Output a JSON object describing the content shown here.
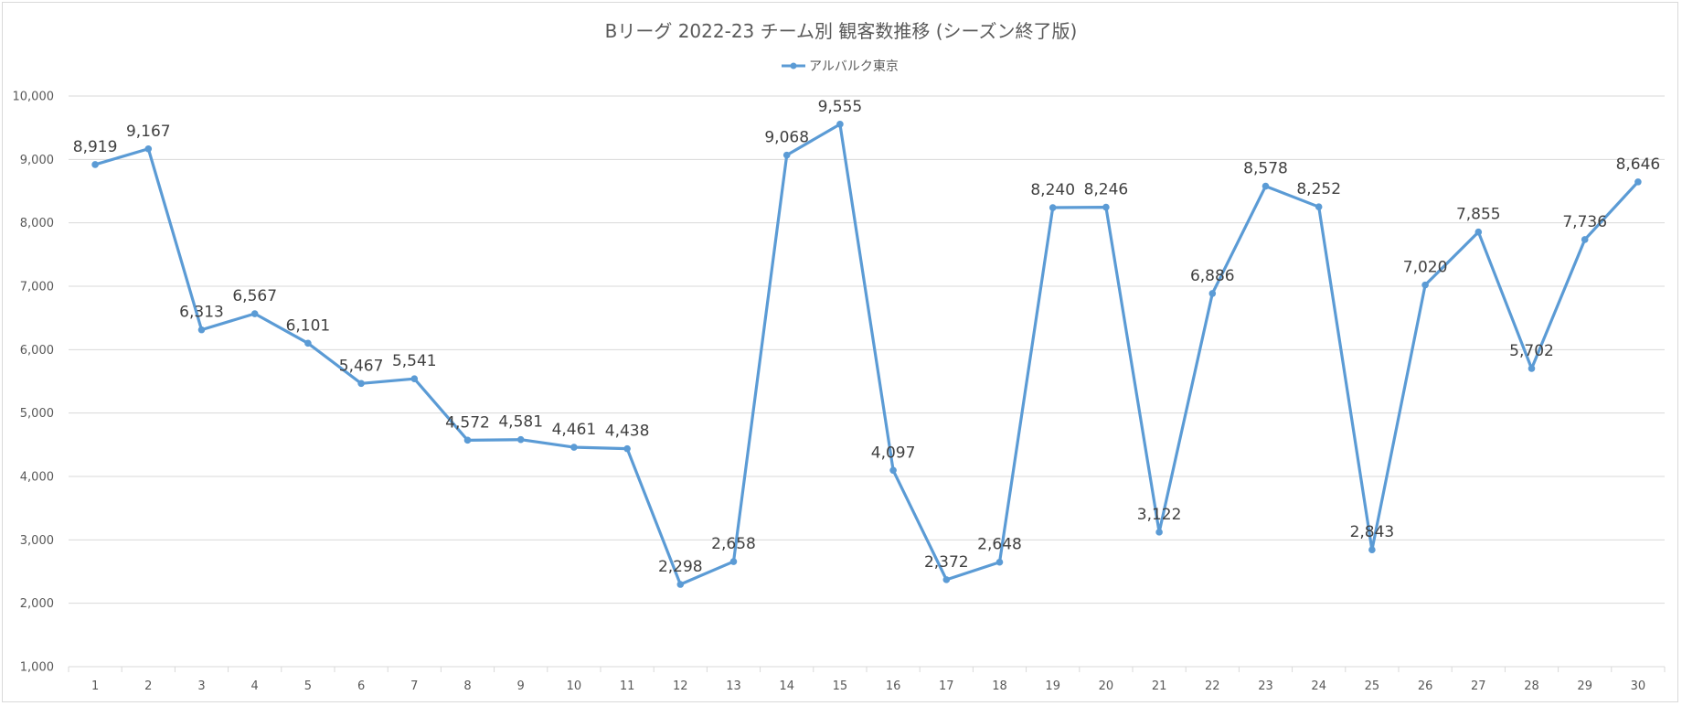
{
  "chart_data": {
    "type": "line",
    "title": "Bリーグ 2022-23 チーム別 観客数推移 (シーズン終了版)",
    "xlabel": "",
    "ylabel": "",
    "categories": [
      "1",
      "2",
      "3",
      "4",
      "5",
      "6",
      "7",
      "8",
      "9",
      "10",
      "11",
      "12",
      "13",
      "14",
      "15",
      "16",
      "17",
      "18",
      "19",
      "20",
      "21",
      "22",
      "23",
      "24",
      "25",
      "26",
      "27",
      "28",
      "29",
      "30"
    ],
    "series": [
      {
        "name": "アルバルク東京",
        "values": [
          8919,
          9167,
          6313,
          6567,
          6101,
          5467,
          5541,
          4572,
          4581,
          4461,
          4438,
          2298,
          2658,
          9068,
          9555,
          4097,
          2372,
          2648,
          8240,
          8246,
          3122,
          6886,
          8578,
          8252,
          2843,
          7020,
          7855,
          5702,
          7736,
          8646
        ],
        "color": "#5b9bd5"
      }
    ],
    "ylim": [
      1000,
      10000
    ],
    "yticks": [
      1000,
      2000,
      3000,
      4000,
      5000,
      6000,
      7000,
      8000,
      9000,
      10000
    ],
    "grid": true,
    "legend_position": "top",
    "data_labels": true,
    "colors": {
      "line": "#5b9bd5",
      "grid": "#d9d9d9",
      "text": "#595959",
      "label": "#404040"
    }
  }
}
